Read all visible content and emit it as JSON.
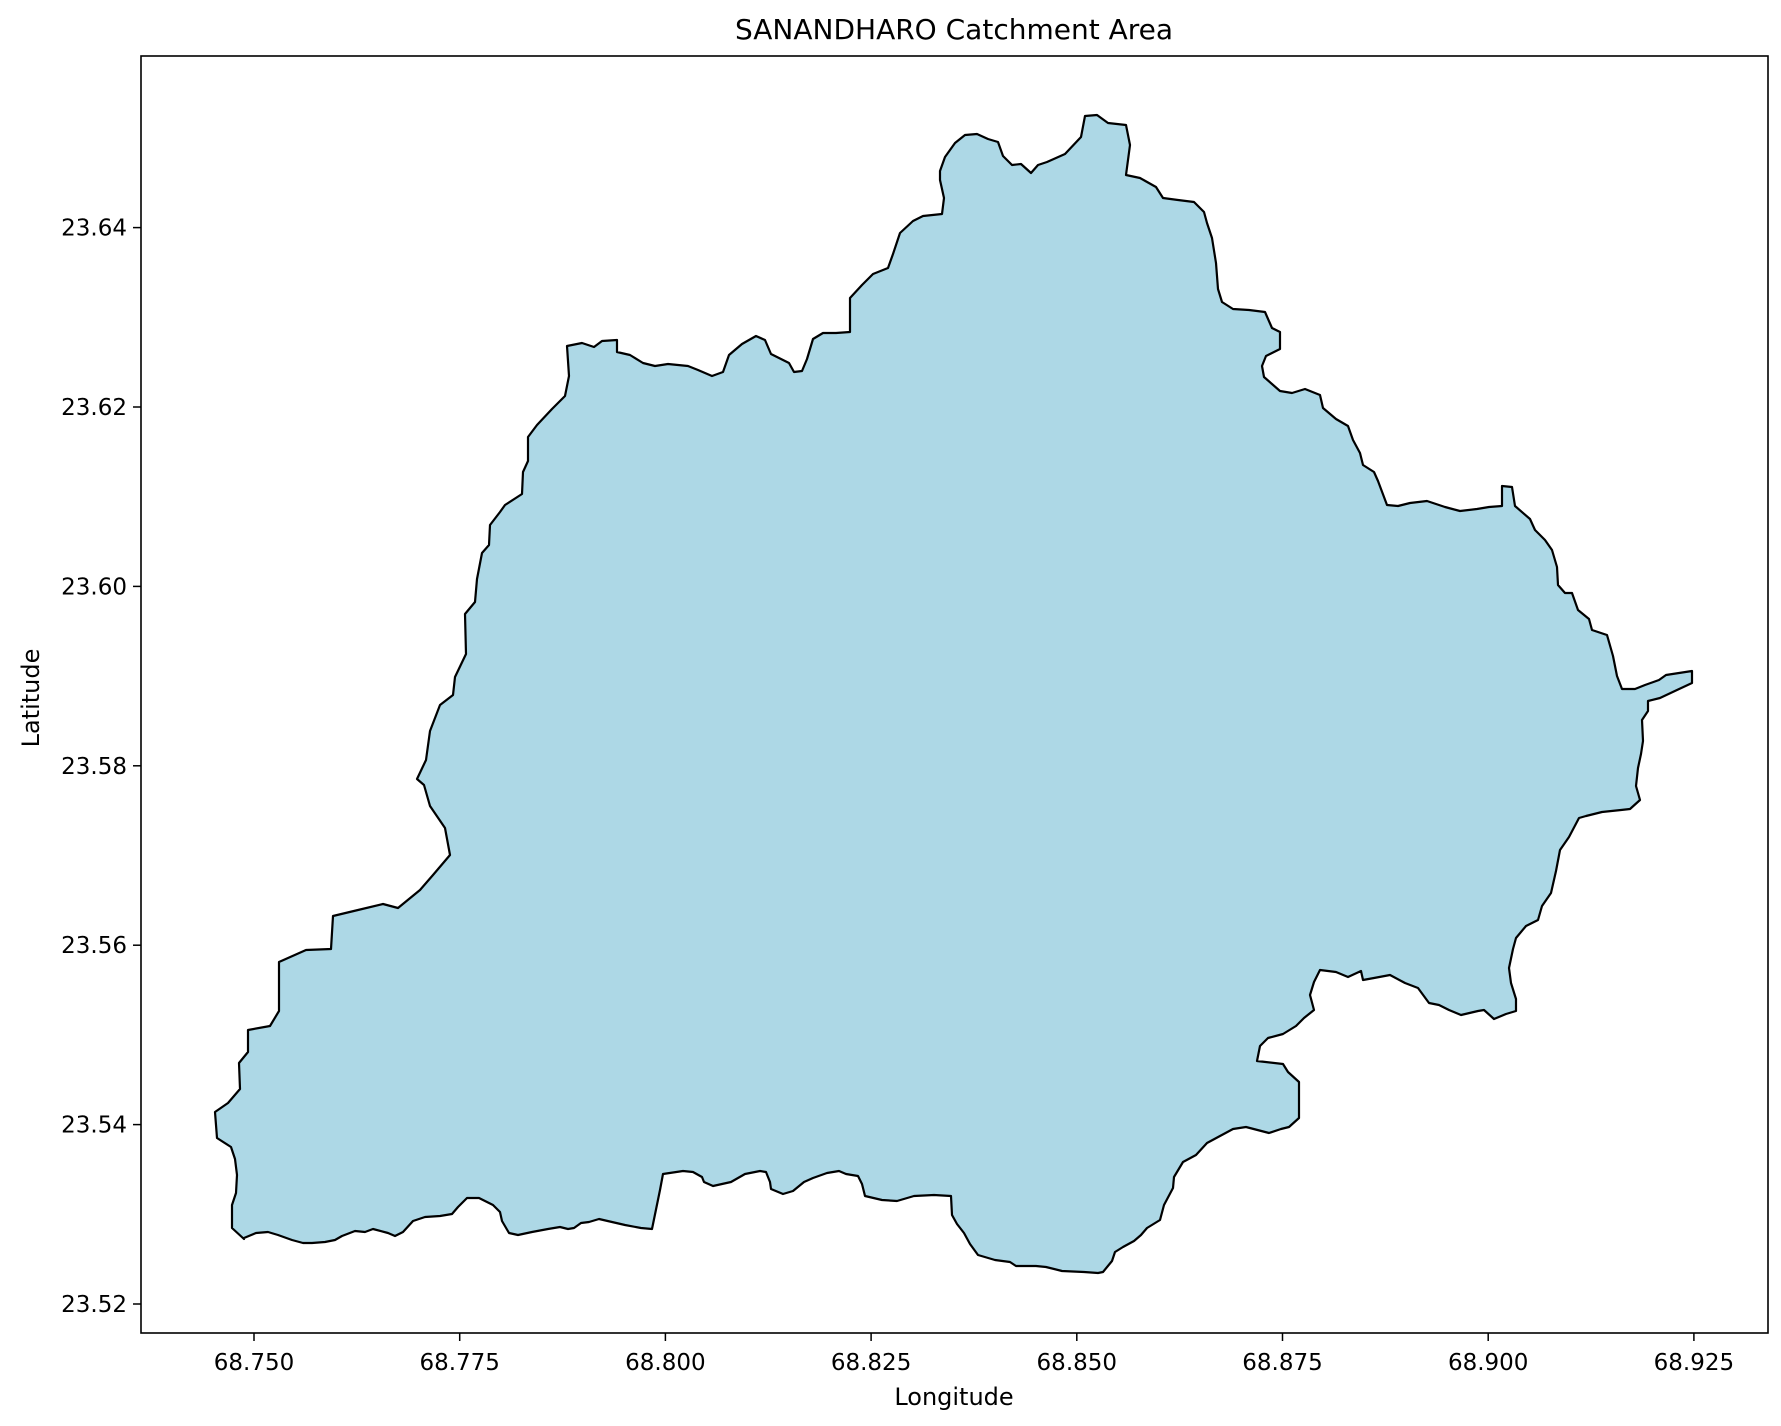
{
  "map": {
    "title": "SANANDHARO Catchment Area",
    "xlabel": "Longitude",
    "ylabel": "Latitude",
    "x_ticks": [
      "68.750",
      "68.775",
      "68.800",
      "68.825",
      "68.850",
      "68.875",
      "68.900",
      "68.925"
    ],
    "y_ticks": [
      "23.52",
      "23.54",
      "23.56",
      "23.58",
      "23.60",
      "23.62",
      "23.64"
    ],
    "fill_color": "#add8e6",
    "edge_color": "#000000"
  }
}
